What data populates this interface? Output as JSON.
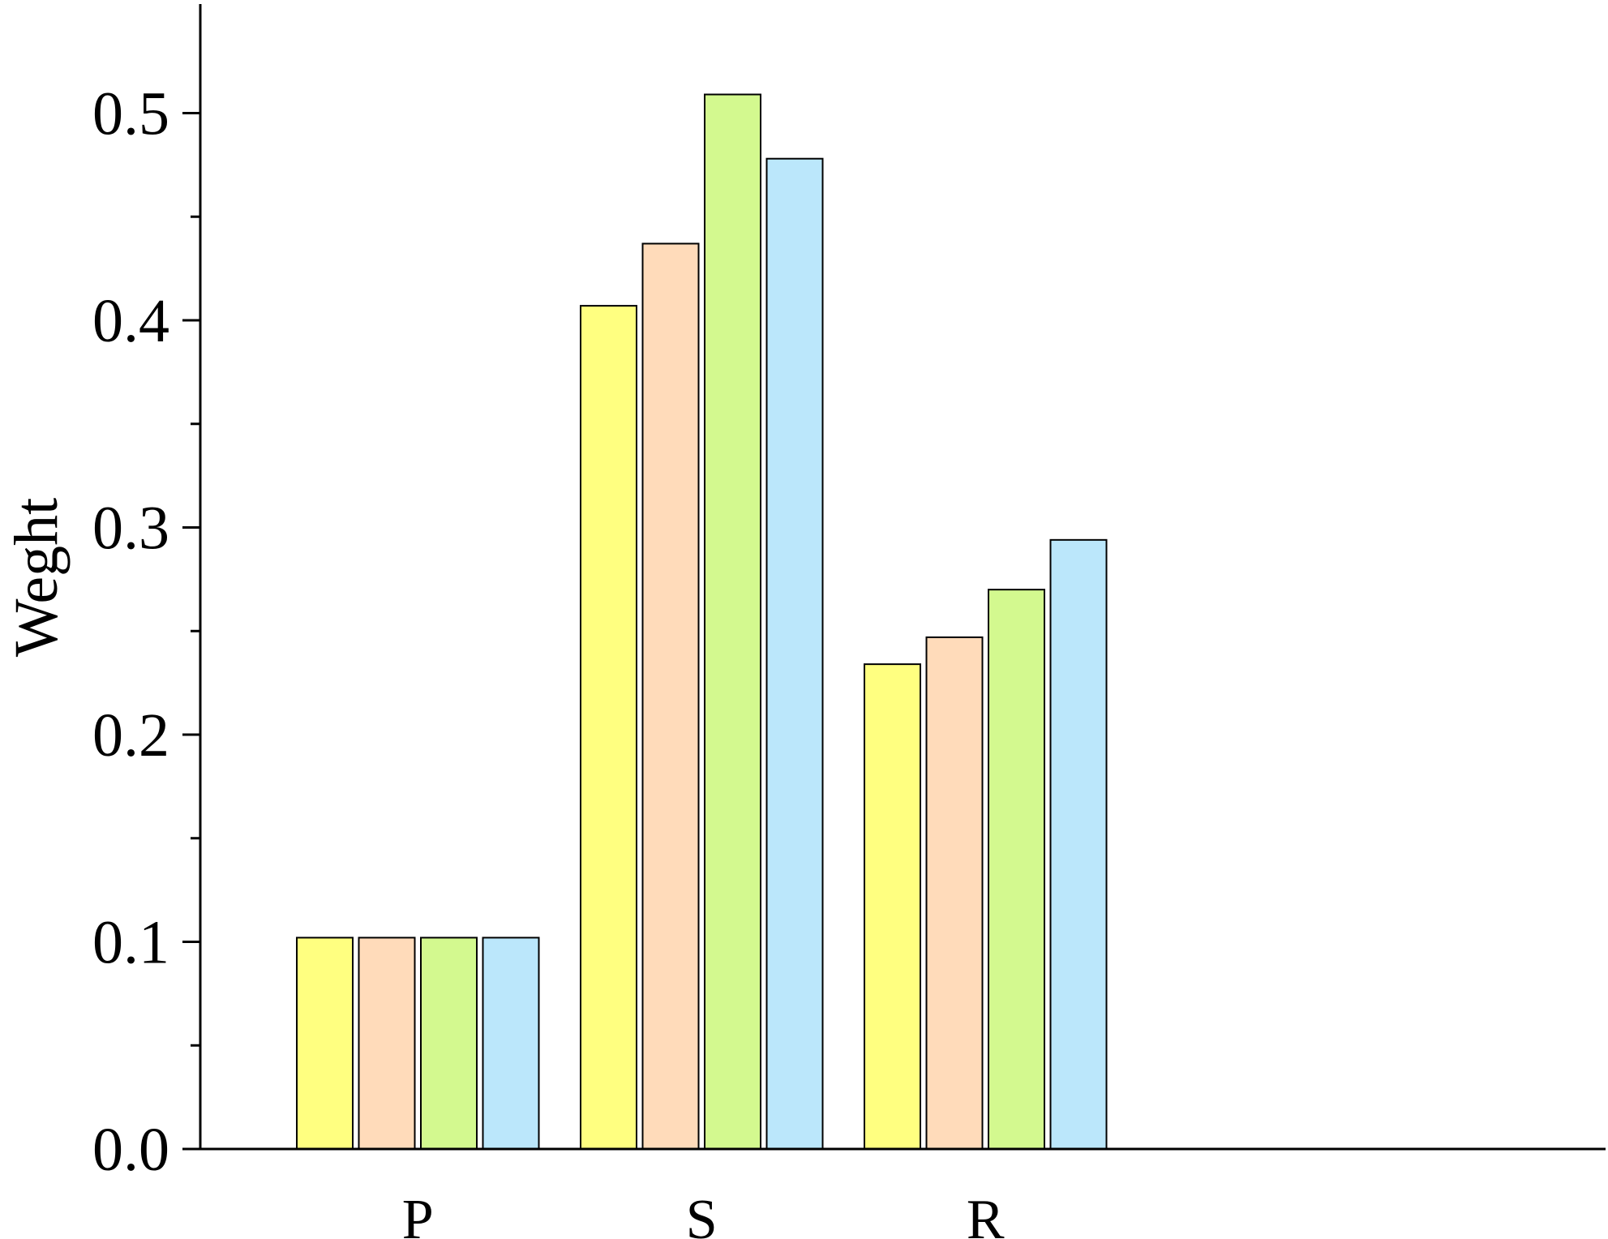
{
  "chart_data": {
    "type": "bar",
    "title": "",
    "xlabel": "",
    "ylabel": "Weght",
    "categories": [
      "P",
      "S",
      "R"
    ],
    "ylim": [
      0.0,
      0.55
    ],
    "yticks": [
      "0.0",
      "0.1",
      "0.2",
      "0.3",
      "0.4",
      "0.5"
    ],
    "ytick_values": [
      0.0,
      0.1,
      0.2,
      0.3,
      0.4,
      0.5
    ],
    "minor_ytick_values": [
      0.05,
      0.15,
      0.25,
      0.35,
      0.45
    ],
    "grid": false,
    "legend": "none",
    "series": [
      {
        "values": [
          0.102,
          0.407,
          0.234
        ],
        "color": "#FFFF80"
      },
      {
        "values": [
          0.102,
          0.437,
          0.247
        ],
        "color": "#FFDBBA"
      },
      {
        "values": [
          0.102,
          0.509,
          0.27
        ],
        "color": "#D3F98F"
      },
      {
        "values": [
          0.102,
          0.478,
          0.294
        ],
        "color": "#BBE7FB"
      }
    ]
  }
}
